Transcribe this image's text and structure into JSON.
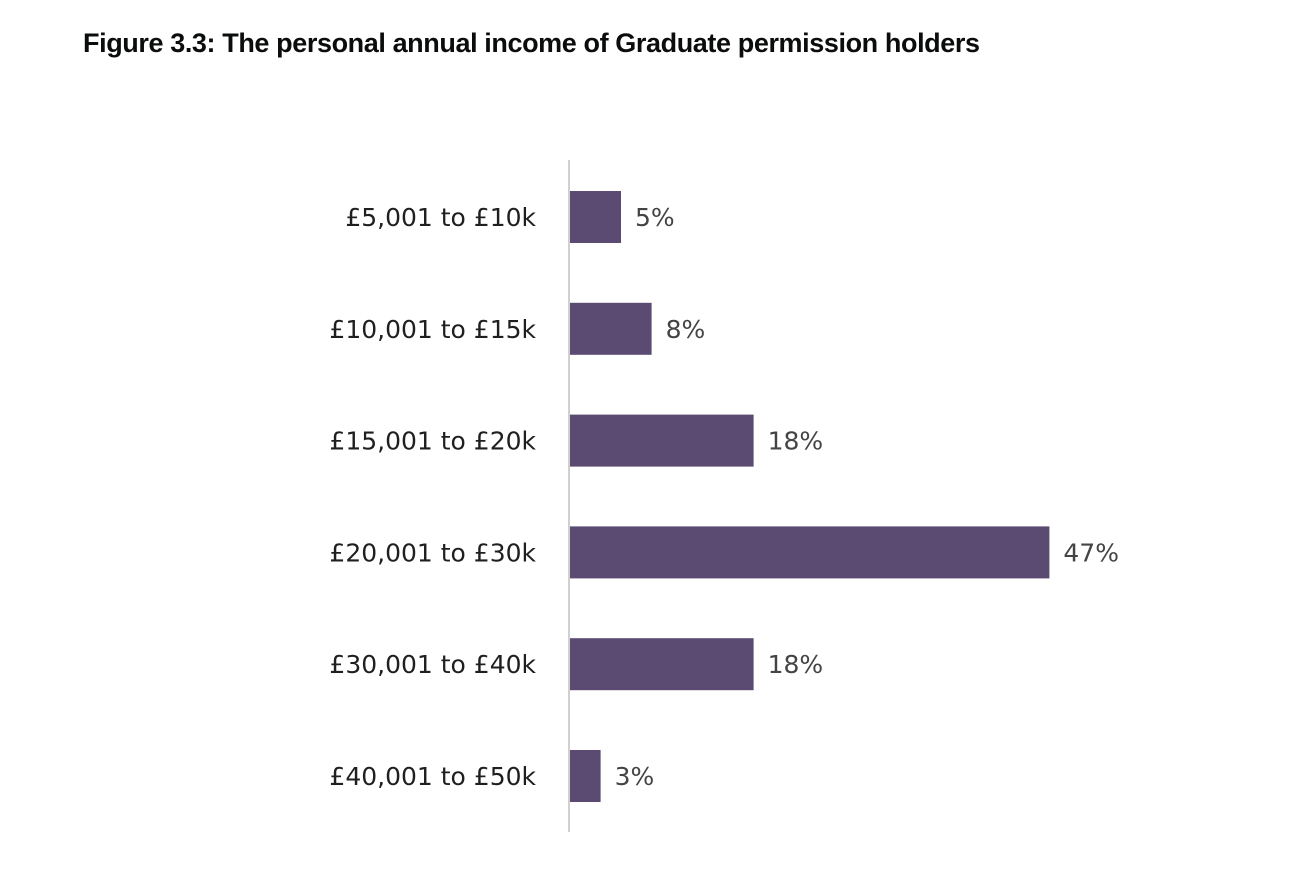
{
  "figure": {
    "title": "Figure 3.3: The personal annual income of Graduate permission holders"
  },
  "chart_data": {
    "type": "bar",
    "orientation": "horizontal",
    "title": "Figure 3.3: The personal annual income of Graduate permission holders",
    "xlabel": "",
    "ylabel": "",
    "categories": [
      "£5,001 to £10k",
      "£10,001 to £15k",
      "£15,001 to £20k",
      "£20,001 to £30k",
      "£30,001 to £40k",
      "£40,001 to £50k"
    ],
    "values": [
      5,
      8,
      18,
      47,
      18,
      3
    ],
    "value_labels": [
      "5%",
      "8%",
      "18%",
      "47%",
      "18%",
      "3%"
    ],
    "xlim": [
      0,
      50
    ],
    "grid": false,
    "legend": "none",
    "bar_color": "#5b4a71",
    "axis_color": "#d0d0d0"
  }
}
